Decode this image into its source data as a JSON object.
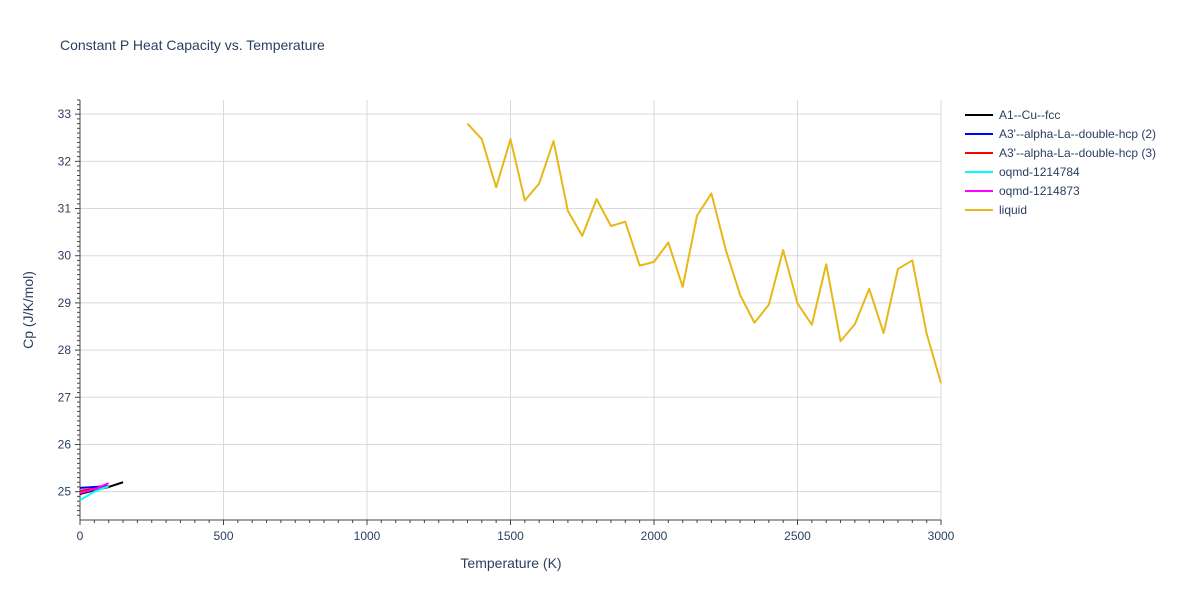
{
  "chart_data": {
    "type": "line",
    "title": "Constant P Heat Capacity vs. Temperature",
    "xlabel": "Temperature (K)",
    "ylabel": "Cp (J/K/mol)",
    "xlim": [
      0,
      3000
    ],
    "ylim": [
      24.4,
      33.3
    ],
    "xticks": [
      0,
      500,
      1000,
      1500,
      2000,
      2500,
      3000
    ],
    "xtick_labels": [
      "0",
      "500",
      "1000",
      "1500",
      "2000",
      "2500",
      "3000"
    ],
    "yticks": [
      25,
      26,
      27,
      28,
      29,
      30,
      31,
      32,
      33
    ],
    "ytick_labels": [
      "25",
      "26",
      "27",
      "28",
      "29",
      "30",
      "31",
      "32",
      "33"
    ],
    "grid": true,
    "legend_position": "right",
    "series": [
      {
        "name": "A1--Cu--fcc",
        "color": "#000000",
        "x": [
          0,
          50,
          100,
          150
        ],
        "y": [
          24.95,
          25.03,
          25.1,
          25.2
        ]
      },
      {
        "name": "A3'--alpha-La--double-hcp (2)",
        "color": "#0000ff",
        "x": [
          0,
          50,
          100
        ],
        "y": [
          25.08,
          25.1,
          25.12
        ]
      },
      {
        "name": "A3'--alpha-La--double-hcp (3)",
        "color": "#ff0000",
        "x": [
          0,
          50,
          100
        ],
        "y": [
          25.02,
          25.06,
          25.1
        ]
      },
      {
        "name": "oqmd-1214784",
        "color": "#00ffff",
        "x": [
          0,
          50,
          100
        ],
        "y": [
          24.82,
          25.0,
          25.12
        ]
      },
      {
        "name": "oqmd-1214873",
        "color": "#ff00ff",
        "x": [
          0,
          50,
          100
        ],
        "y": [
          24.97,
          25.05,
          25.18
        ]
      },
      {
        "name": "liquid",
        "color": "#e6b818",
        "x": [
          1350,
          1400,
          1450,
          1500,
          1550,
          1600,
          1650,
          1700,
          1750,
          1800,
          1850,
          1900,
          1950,
          2000,
          2050,
          2100,
          2150,
          2200,
          2250,
          2300,
          2350,
          2400,
          2450,
          2500,
          2550,
          2600,
          2650,
          2700,
          2750,
          2800,
          2850,
          2900,
          2950,
          3000
        ],
        "y": [
          32.8,
          32.47,
          31.45,
          32.47,
          31.17,
          31.53,
          32.43,
          30.95,
          30.42,
          31.2,
          30.63,
          30.72,
          29.79,
          29.87,
          30.28,
          29.34,
          30.85,
          31.32,
          30.13,
          29.17,
          28.58,
          28.96,
          30.12,
          28.99,
          28.54,
          29.82,
          28.19,
          28.55,
          29.3,
          28.36,
          29.72,
          29.9,
          28.35,
          27.3
        ]
      }
    ]
  }
}
